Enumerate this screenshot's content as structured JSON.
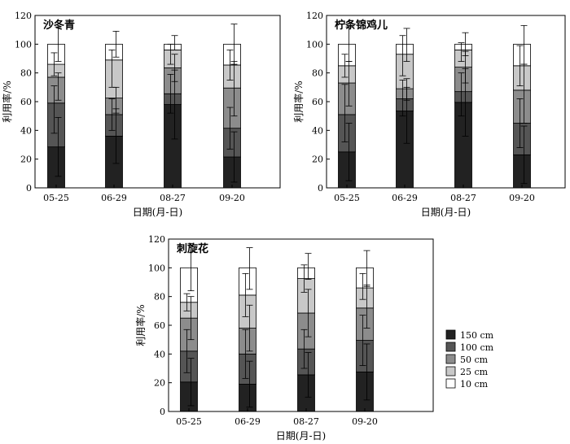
{
  "figure": {
    "legend_entries": [
      {
        "label": "150 cm",
        "color": "#222222"
      },
      {
        "label": "100 cm",
        "color": "#555555"
      },
      {
        "label": "50 cm",
        "color": "#8c8c8c"
      },
      {
        "label": "25 cm",
        "color": "#c8c8c8"
      },
      {
        "label": "10 cm",
        "color": "#ffffff"
      }
    ]
  },
  "chart_data": [
    {
      "type": "bar",
      "stacked": true,
      "title": "沙冬青",
      "xlabel": "日期(月-日)",
      "ylabel": "利用率/%",
      "ylim": [
        0,
        120
      ],
      "yticks": [
        0,
        20,
        40,
        60,
        80,
        100,
        120
      ],
      "categories": [
        "05-25",
        "06-29",
        "08-27",
        "09-20"
      ],
      "series": [
        {
          "name": "150 cm",
          "values": [
            28.5,
            36,
            58,
            21.5
          ]
        },
        {
          "name": "100 cm",
          "values": [
            30.5,
            15,
            7.5,
            20
          ]
        },
        {
          "name": "50 cm",
          "values": [
            18,
            11.5,
            18,
            28
          ]
        },
        {
          "name": "25 cm",
          "values": [
            9,
            26.5,
            12.5,
            16
          ]
        },
        {
          "name": "10 cm",
          "values": [
            14,
            11,
            4,
            14.5
          ]
        }
      ],
      "error_bars": [
        [
          [
            8,
            49
          ],
          [
            38,
            71
          ],
          [
            61,
            80
          ],
          [
            78,
            94
          ],
          [
            88,
            112
          ]
        ],
        [
          [
            17,
            55
          ],
          [
            40,
            62
          ],
          [
            52,
            70
          ],
          [
            70,
            96
          ],
          [
            91,
            109
          ]
        ],
        [
          [
            34,
            82
          ],
          [
            52,
            79
          ],
          [
            74,
            93
          ],
          [
            86,
            100
          ],
          [
            96,
            106
          ]
        ],
        [
          [
            4,
            39
          ],
          [
            27,
            56
          ],
          [
            50,
            88
          ],
          [
            75,
            96
          ],
          [
            86,
            114
          ]
        ]
      ]
    },
    {
      "type": "bar",
      "stacked": true,
      "title": "柠条锦鸡儿",
      "xlabel": "日期(月-日)",
      "ylabel": "利用率/%",
      "ylim": [
        0,
        120
      ],
      "yticks": [
        0,
        20,
        40,
        60,
        80,
        100,
        120
      ],
      "categories": [
        "05-25",
        "06-29",
        "08-27",
        "09-20"
      ],
      "series": [
        {
          "name": "150 cm",
          "values": [
            25,
            53.5,
            59.5,
            23
          ]
        },
        {
          "name": "100 cm",
          "values": [
            26,
            8.5,
            7.5,
            22
          ]
        },
        {
          "name": "50 cm",
          "values": [
            22,
            7,
            17,
            23
          ]
        },
        {
          "name": "25 cm",
          "values": [
            12,
            24,
            12,
            17
          ]
        },
        {
          "name": "10 cm",
          "values": [
            15,
            7,
            4,
            15
          ]
        }
      ],
      "error_bars": [
        [
          [
            5,
            45
          ],
          [
            32,
            72
          ],
          [
            57,
            88
          ],
          [
            77,
            93
          ],
          [
            88,
            112
          ]
        ],
        [
          [
            31,
            76
          ],
          [
            50,
            75
          ],
          [
            61,
            70
          ],
          [
            78,
            106
          ],
          [
            88,
            111
          ]
        ],
        [
          [
            36,
            83
          ],
          [
            50,
            80
          ],
          [
            73,
            95
          ],
          [
            88,
            101
          ],
          [
            92,
            108
          ]
        ],
        [
          [
            3,
            43
          ],
          [
            28,
            62
          ],
          [
            45,
            86
          ],
          [
            71,
            99
          ],
          [
            86,
            113
          ]
        ]
      ]
    },
    {
      "type": "bar",
      "stacked": true,
      "title": "刺旋花",
      "xlabel": "日期(月-日)",
      "ylabel": "利用率/%",
      "ylim": [
        0,
        120
      ],
      "yticks": [
        0,
        20,
        40,
        60,
        80,
        100,
        120
      ],
      "categories": [
        "05-25",
        "06-29",
        "08-27",
        "09-20"
      ],
      "series": [
        {
          "name": "150 cm",
          "values": [
            20.5,
            19,
            25.5,
            27.5
          ]
        },
        {
          "name": "100 cm",
          "values": [
            21.5,
            21,
            18,
            22
          ]
        },
        {
          "name": "50 cm",
          "values": [
            23,
            18,
            25,
            22.5
          ]
        },
        {
          "name": "25 cm",
          "values": [
            11,
            23,
            24,
            14
          ]
        },
        {
          "name": "10 cm",
          "values": [
            24,
            19,
            7.5,
            14
          ]
        }
      ],
      "error_bars": [
        [
          [
            4,
            37
          ],
          [
            27,
            57
          ],
          [
            50,
            80
          ],
          [
            70,
            82
          ],
          [
            84,
            117
          ]
        ],
        [
          [
            3,
            35
          ],
          [
            23,
            57
          ],
          [
            42,
            74
          ],
          [
            66,
            96
          ],
          [
            85,
            114
          ]
        ],
        [
          [
            10,
            41
          ],
          [
            30,
            57
          ],
          [
            52,
            85
          ],
          [
            83,
            102
          ],
          [
            92,
            110
          ]
        ],
        [
          [
            8,
            47
          ],
          [
            32,
            67
          ],
          [
            58,
            88
          ],
          [
            78,
            96
          ],
          [
            87,
            112
          ]
        ]
      ]
    }
  ]
}
